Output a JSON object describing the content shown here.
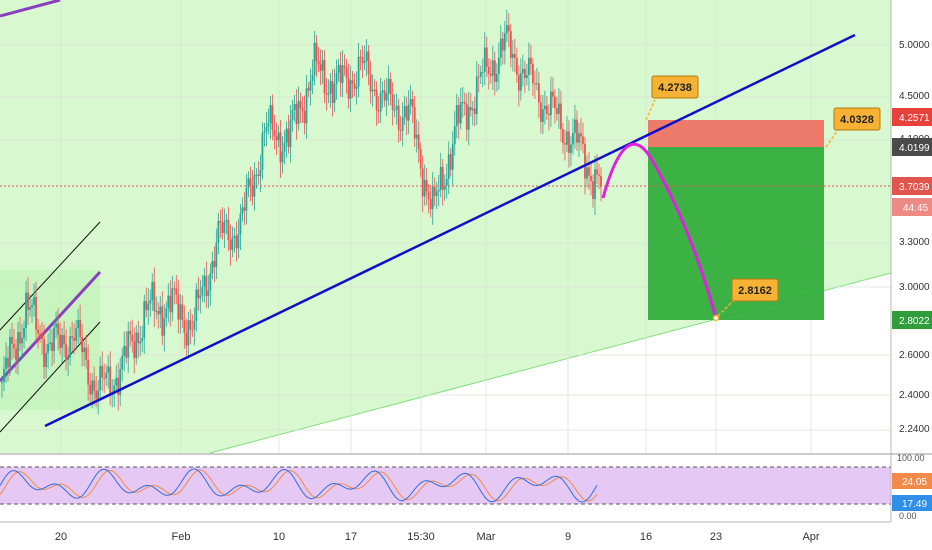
{
  "colors": {
    "up": "#26a69a",
    "down": "#ef5350",
    "trendline": "#1010c8",
    "projection": "#e020e0",
    "channel_mid": "#8a3fbf",
    "stop_zone": "#ef6b5f",
    "target_zone": "#34ad3c",
    "green_fill": "#d8f8cf",
    "support_line": "#7fe07a",
    "stoch_band": "#e6c8f5",
    "k_line": "#2f6fe0",
    "d_line": "#f28a4a",
    "last_price": "#e0564f",
    "callout": "#f7b233"
  },
  "price_axis": {
    "ticks": [
      "5.0000",
      "4.5000",
      "4.1000",
      "3.3000",
      "3.0000",
      "2.6000",
      "2.4000",
      "2.2400"
    ]
  },
  "price_labels": {
    "stop": "4.2571",
    "entry": "4.0199",
    "last": "3.7039",
    "countdown": "44:45",
    "target": "2.8022"
  },
  "callouts": {
    "top": "4.2738",
    "right": "4.0328",
    "bottom": "2.8162"
  },
  "stoch_axis": {
    "ticks": [
      "100.00",
      "0.00"
    ],
    "k_label": "24.05",
    "d_label": "17.49"
  },
  "time_axis": {
    "labels": [
      "20",
      "Feb",
      "10",
      "17",
      "15:30",
      "Mar",
      "9",
      "16",
      "23",
      "Apr"
    ]
  },
  "chart_data": {
    "type": "candlestick",
    "price_scale": "log",
    "ylim": [
      2.1,
      5.3
    ],
    "levels": {
      "stop_loss": 4.2571,
      "entry": 4.0199,
      "last_price": 3.7039,
      "take_profit": 2.8022
    },
    "annotations": [
      4.2738,
      4.0328,
      2.8162
    ],
    "price_series": [
      [
        "Jan 13",
        2.4
      ],
      [
        "Jan 15",
        2.82
      ],
      [
        "Jan 17",
        2.6
      ],
      [
        "Jan 20",
        2.68
      ],
      [
        "Jan 22",
        2.38
      ],
      [
        "Jan 25",
        2.5
      ],
      [
        "Jan 28",
        2.8
      ],
      [
        "Jan 31",
        2.85
      ],
      [
        "Feb 3",
        2.72
      ],
      [
        "Feb 6",
        3.25
      ],
      [
        "Feb 9",
        3.35
      ],
      [
        "Feb 11",
        4.05
      ],
      [
        "Feb 14",
        4.0
      ],
      [
        "Feb 16",
        4.6
      ],
      [
        "Feb 18",
        4.45
      ],
      [
        "Feb 20",
        4.62
      ],
      [
        "Feb 22",
        4.3
      ],
      [
        "Feb 25",
        4.2
      ],
      [
        "Feb 27",
        3.42
      ],
      [
        "Mar 1",
        4.1
      ],
      [
        "Mar 3",
        4.5
      ],
      [
        "Mar 5",
        4.85
      ],
      [
        "Mar 7",
        4.5
      ],
      [
        "Mar 9",
        4.2
      ],
      [
        "Mar 11",
        3.95
      ],
      [
        "Mar 12",
        3.6
      ]
    ],
    "stoch_rsi": {
      "k_last": 24.05,
      "d_last": 17.49,
      "range": [
        0,
        100
      ]
    }
  }
}
